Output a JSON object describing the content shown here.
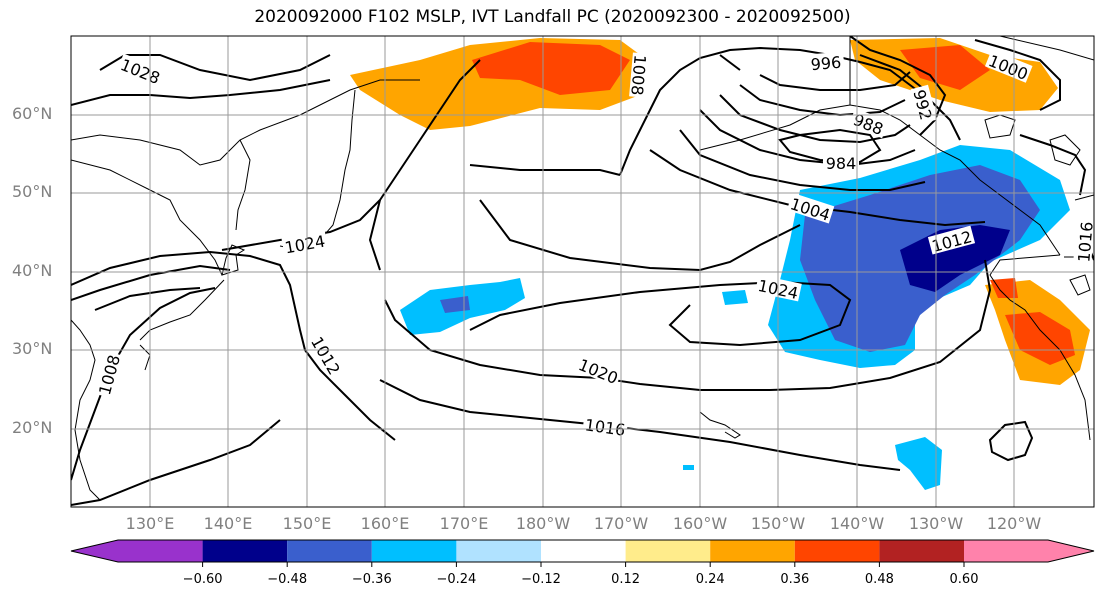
{
  "title": "2020092000 F102 MSLP, IVT Landfall PC (2020092300 - 2020092500)",
  "lat_labels": [
    "60°N",
    "50°N",
    "40°N",
    "30°N",
    "20°N"
  ],
  "lon_labels": [
    "130°E",
    "140°E",
    "150°E",
    "160°E",
    "170°E",
    "180°W",
    "170°W",
    "160°W",
    "150°W",
    "140°W",
    "130°W",
    "120°W"
  ],
  "isobar_labels": [
    "1028",
    "1024",
    "1024",
    "1020",
    "1016",
    "1012",
    "1008",
    "1008",
    "1004",
    "996",
    "992",
    "988",
    "984",
    "1000",
    "1012",
    "1016"
  ],
  "colorbar": {
    "ticks": [
      "−0.60",
      "−0.48",
      "−0.36",
      "−0.24",
      "−0.12",
      "0.12",
      "0.24",
      "0.36",
      "0.48",
      "0.60"
    ],
    "colors": [
      "#9932cc",
      "#00008b",
      "#3a5fcd",
      "#00bfff",
      "#b0e2ff",
      "#ffffff",
      "#ffec8b",
      "#ffa500",
      "#ff4500",
      "#b22222",
      "#ff82ab"
    ]
  }
}
